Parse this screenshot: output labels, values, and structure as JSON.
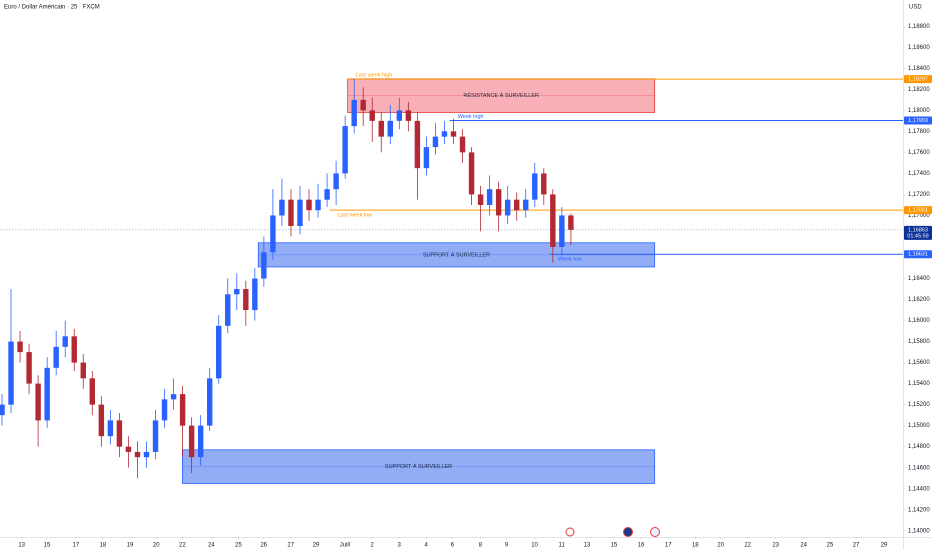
{
  "chart_data": {
    "type": "candlestick",
    "title": "Euro / Dollar Américain · 25 · FXCM",
    "currency": "USD",
    "up_color": "#2962ff",
    "down_color": "#b22833",
    "xlim": [
      0,
      100
    ],
    "ylim": [
      1.1395,
      1.1905
    ],
    "x": [
      0,
      1,
      2,
      3,
      4,
      5,
      6,
      7,
      8,
      9,
      10,
      11,
      12,
      13,
      14,
      15,
      16,
      17,
      18,
      19,
      20,
      21,
      22,
      23,
      24,
      25,
      26,
      27,
      28,
      29,
      30,
      31,
      32,
      33,
      34,
      35,
      36,
      37,
      38,
      39,
      40,
      41,
      42,
      43,
      44,
      45,
      46,
      47,
      48,
      49,
      50,
      51,
      52,
      53,
      54,
      55,
      56,
      57,
      58,
      59,
      60,
      61,
      62,
      63
    ],
    "open": [
      1.151,
      1.152,
      1.158,
      1.157,
      1.154,
      1.1505,
      1.1555,
      1.1575,
      1.1585,
      1.156,
      1.1545,
      1.152,
      1.149,
      1.1505,
      1.148,
      1.1475,
      1.147,
      1.1475,
      1.1505,
      1.1525,
      1.153,
      1.15,
      1.147,
      1.15,
      1.1545,
      1.1595,
      1.1625,
      1.163,
      1.161,
      1.164,
      1.1665,
      1.17,
      1.1715,
      1.169,
      1.1715,
      1.1705,
      1.1715,
      1.1725,
      1.174,
      1.1785,
      1.181,
      1.18,
      1.179,
      1.1775,
      1.179,
      1.18,
      1.179,
      1.1745,
      1.1765,
      1.1775,
      1.178,
      1.1775,
      1.176,
      1.172,
      1.171,
      1.1725,
      1.17,
      1.1715,
      1.1705,
      1.1715,
      1.174,
      1.172,
      1.167,
      1.17
    ],
    "high": [
      1.153,
      1.163,
      1.159,
      1.1578,
      1.1548,
      1.1565,
      1.159,
      1.16,
      1.1592,
      1.1568,
      1.1552,
      1.1528,
      1.1515,
      1.1512,
      1.149,
      1.1485,
      1.1485,
      1.1515,
      1.1535,
      1.1545,
      1.1538,
      1.1508,
      1.151,
      1.1555,
      1.1605,
      1.164,
      1.1645,
      1.1638,
      1.165,
      1.168,
      1.1725,
      1.1735,
      1.1725,
      1.1728,
      1.1725,
      1.173,
      1.174,
      1.1752,
      1.1795,
      1.183,
      1.1822,
      1.1812,
      1.1798,
      1.1805,
      1.1812,
      1.1808,
      1.1798,
      1.1775,
      1.1788,
      1.179,
      1.1792,
      1.1782,
      1.1765,
      1.1728,
      1.1738,
      1.1732,
      1.1728,
      1.1722,
      1.1725,
      1.175,
      1.1745,
      1.1725,
      1.1708,
      1.1702
    ],
    "low": [
      1.15,
      1.1512,
      1.156,
      1.153,
      1.148,
      1.1498,
      1.1548,
      1.1565,
      1.1552,
      1.1535,
      1.151,
      1.148,
      1.1482,
      1.147,
      1.146,
      1.145,
      1.146,
      1.1468,
      1.1498,
      1.1515,
      1.147,
      1.1455,
      1.1462,
      1.1495,
      1.154,
      1.1588,
      1.161,
      1.1595,
      1.16,
      1.1632,
      1.1658,
      1.169,
      1.168,
      1.1682,
      1.1695,
      1.1698,
      1.1708,
      1.171,
      1.1735,
      1.1778,
      1.1785,
      1.177,
      1.176,
      1.1768,
      1.1782,
      1.178,
      1.1715,
      1.1738,
      1.1758,
      1.1768,
      1.1768,
      1.175,
      1.171,
      1.1685,
      1.17,
      1.1685,
      1.1692,
      1.1695,
      1.1698,
      1.1708,
      1.171,
      1.1655,
      1.1662,
      1.1672
    ],
    "close": [
      1.152,
      1.158,
      1.157,
      1.154,
      1.1505,
      1.1555,
      1.1575,
      1.1585,
      1.156,
      1.1545,
      1.152,
      1.149,
      1.1505,
      1.148,
      1.1475,
      1.147,
      1.1475,
      1.1505,
      1.1525,
      1.153,
      1.15,
      1.147,
      1.15,
      1.1545,
      1.1595,
      1.1625,
      1.163,
      1.161,
      1.164,
      1.1665,
      1.17,
      1.1715,
      1.169,
      1.1715,
      1.1705,
      1.1715,
      1.1725,
      1.174,
      1.1785,
      1.181,
      1.18,
      1.179,
      1.1775,
      1.179,
      1.18,
      1.179,
      1.1745,
      1.1765,
      1.1775,
      1.178,
      1.1775,
      1.176,
      1.172,
      1.171,
      1.1725,
      1.17,
      1.1715,
      1.1705,
      1.1715,
      1.174,
      1.172,
      1.167,
      1.17,
      1.16863
    ],
    "yticks": [
      {
        "value": 1.14,
        "label": "1,14000"
      },
      {
        "value": 1.142,
        "label": "1,14200"
      },
      {
        "value": 1.144,
        "label": "1,14400"
      },
      {
        "value": 1.146,
        "label": "1,14600"
      },
      {
        "value": 1.148,
        "label": "1,14800"
      },
      {
        "value": 1.15,
        "label": "1,15000"
      },
      {
        "value": 1.152,
        "label": "1,15200"
      },
      {
        "value": 1.154,
        "label": "1,15400"
      },
      {
        "value": 1.156,
        "label": "1,15600"
      },
      {
        "value": 1.158,
        "label": "1,15800"
      },
      {
        "value": 1.16,
        "label": "1,16000"
      },
      {
        "value": 1.162,
        "label": "1,16200"
      },
      {
        "value": 1.164,
        "label": "1,16400"
      },
      {
        "value": 1.17,
        "label": "1,17000"
      },
      {
        "value": 1.172,
        "label": "1,17200"
      },
      {
        "value": 1.174,
        "label": "1,17400"
      },
      {
        "value": 1.176,
        "label": "1,17600"
      },
      {
        "value": 1.178,
        "label": "1,17800"
      },
      {
        "value": 1.18,
        "label": "1,18000"
      },
      {
        "value": 1.182,
        "label": "1,18200"
      },
      {
        "value": 1.184,
        "label": "1,18400"
      },
      {
        "value": 1.186,
        "label": "1,18600"
      },
      {
        "value": 1.188,
        "label": "1,18800"
      }
    ],
    "xticks": [
      {
        "value": 2.4,
        "label": "13"
      },
      {
        "value": 5.2,
        "label": "15"
      },
      {
        "value": 8.4,
        "label": "17"
      },
      {
        "value": 11.4,
        "label": "18"
      },
      {
        "value": 14.4,
        "label": "19"
      },
      {
        "value": 17.3,
        "label": "20"
      },
      {
        "value": 20.2,
        "label": "22"
      },
      {
        "value": 23.4,
        "label": "24"
      },
      {
        "value": 26.4,
        "label": "25"
      },
      {
        "value": 29.2,
        "label": "26"
      },
      {
        "value": 32.2,
        "label": "27"
      },
      {
        "value": 35,
        "label": "29"
      },
      {
        "value": 38.2,
        "label": "Juill"
      },
      {
        "value": 41.2,
        "label": "2"
      },
      {
        "value": 44.2,
        "label": "3"
      },
      {
        "value": 47.2,
        "label": "4"
      },
      {
        "value": 50.1,
        "label": "6"
      },
      {
        "value": 53.2,
        "label": "8"
      },
      {
        "value": 56.1,
        "label": "9"
      },
      {
        "value": 59.2,
        "label": "10"
      },
      {
        "value": 62.2,
        "label": "11"
      },
      {
        "value": 65,
        "label": "13"
      },
      {
        "value": 68,
        "label": "15"
      },
      {
        "value": 71,
        "label": "16"
      },
      {
        "value": 74,
        "label": "17"
      },
      {
        "value": 77,
        "label": "18"
      },
      {
        "value": 79.8,
        "label": "20"
      },
      {
        "value": 82.8,
        "label": "22"
      },
      {
        "value": 85.9,
        "label": "23"
      },
      {
        "value": 89,
        "label": "24"
      },
      {
        "value": 91.9,
        "label": "25"
      },
      {
        "value": 94.8,
        "label": "27"
      },
      {
        "value": 97.9,
        "label": "29"
      }
    ],
    "zones": [
      {
        "label": "RÉSISTANCE À SURVEILLER",
        "color": "#f7a1a8",
        "border": "#e53935",
        "x": [
          38.5,
          72.5
        ],
        "y": [
          1.1798,
          1.183
        ]
      },
      {
        "label": "SUPPORT À SURVEILLER",
        "color": "#7f9ff5",
        "border": "#2962ff",
        "x": [
          28.6,
          72.5
        ],
        "y": [
          1.1651,
          1.1674
        ]
      },
      {
        "label": "SUPPORT À SURVEILLER",
        "color": "#7f9ff5",
        "border": "#2962ff",
        "x": [
          20.2,
          72.5
        ],
        "y": [
          1.1445,
          1.1477
        ]
      }
    ],
    "levels": [
      {
        "value": 1.18297,
        "label": "1,18297",
        "name": "Last week high",
        "color": "#ff9800",
        "x": 38.5,
        "name_side": "above"
      },
      {
        "value": 1.17903,
        "label": "1,17903",
        "name": "Week high",
        "color": "#2962ff",
        "x": 49.8,
        "name_side": "above"
      },
      {
        "value": 1.17051,
        "label": "1,17051",
        "name": "Last week low",
        "color": "#ff9800",
        "x": 36.5,
        "name_side": "below"
      },
      {
        "value": 1.16631,
        "label": "1,16631",
        "name": "Week low",
        "color": "#2962ff",
        "x": 60.9,
        "name_side": "below"
      }
    ],
    "last_price": {
      "value": 1.16863,
      "label": "1,16863",
      "countdown": "01:45:59",
      "color": "#0c3299"
    }
  }
}
